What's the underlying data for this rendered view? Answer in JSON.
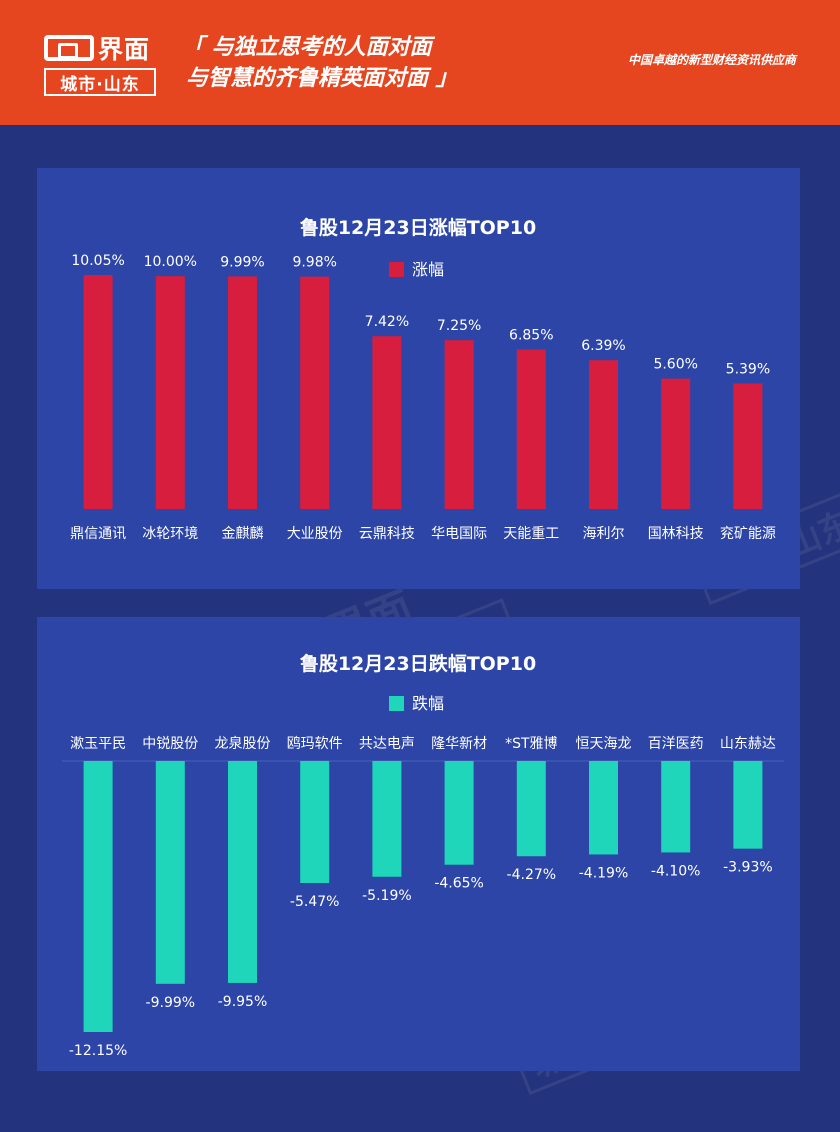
{
  "header": {
    "logo_word": "界面",
    "logo_sub": "城市·山东",
    "slogan_line1": "「 与独立思考的人面对面",
    "slogan_line2": "与智慧的齐鲁精英面对面 」",
    "tagline": "中国卓越的新型财经资讯供应商"
  },
  "chart_data": [
    {
      "type": "bar",
      "title": "鲁股12月23日涨幅TOP10",
      "legend": "涨幅",
      "legend_position": "top",
      "color": "#d81e3f",
      "categories": [
        "鼎信通讯",
        "冰轮环境",
        "金麒麟",
        "大业股份",
        "云鼎科技",
        "华电国际",
        "天能重工",
        "海利尔",
        "国林科技",
        "兖矿能源"
      ],
      "values": [
        10.05,
        10.0,
        9.99,
        9.98,
        7.42,
        7.25,
        6.85,
        6.39,
        5.6,
        5.39
      ],
      "labels": [
        "10.05%",
        "10.00%",
        "9.99%",
        "9.98%",
        "7.42%",
        "7.25%",
        "6.85%",
        "6.39%",
        "5.60%",
        "5.39%"
      ],
      "ylim": [
        0,
        10.05
      ],
      "grid": false
    },
    {
      "type": "bar",
      "title": "鲁股12月23日跌幅TOP10",
      "legend": "跌幅",
      "legend_position": "top",
      "color": "#1fd6ba",
      "categories": [
        "漱玉平民",
        "中锐股份",
        "龙泉股份",
        "鸥玛软件",
        "共达电声",
        "隆华新材",
        "*ST雅博",
        "恒天海龙",
        "百洋医药",
        "山东赫达"
      ],
      "values": [
        -12.15,
        -9.99,
        -9.95,
        -5.47,
        -5.19,
        -4.65,
        -4.27,
        -4.19,
        -4.1,
        -3.93
      ],
      "labels": [
        "-12.15%",
        "-9.99%",
        "-9.95%",
        "-5.47%",
        "-5.19%",
        "-4.65%",
        "-4.27%",
        "-4.19%",
        "-4.10%",
        "-3.93%"
      ],
      "ylim": [
        -12.15,
        0
      ],
      "grid": false
    }
  ]
}
